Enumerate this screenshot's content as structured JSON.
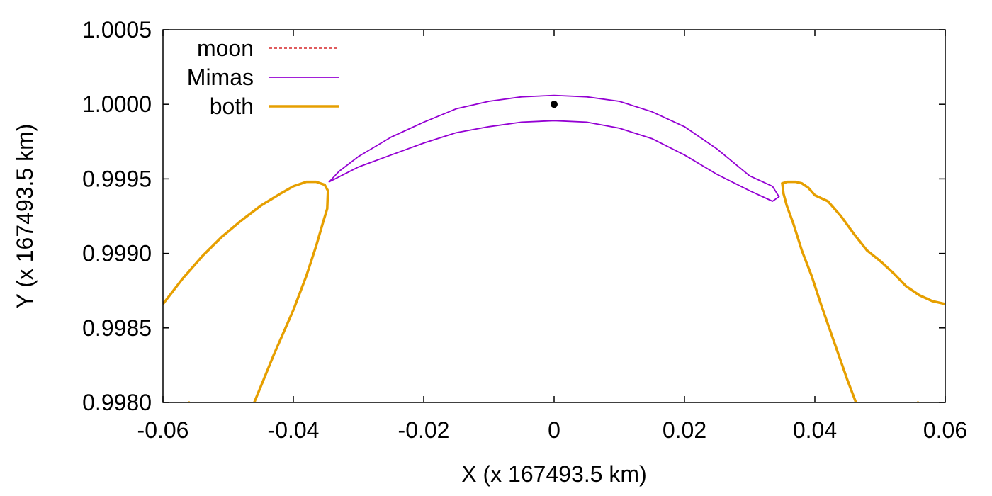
{
  "chart_data": {
    "type": "line",
    "title": "",
    "xlabel": "X (x 167493.5 km)",
    "ylabel": "Y (x 167493.5 km)",
    "xlim": [
      -0.06,
      0.06
    ],
    "ylim": [
      0.998,
      1.0005
    ],
    "x_ticks": [
      -0.06,
      -0.04,
      -0.02,
      0,
      0.02,
      0.04,
      0.06
    ],
    "x_tick_labels": [
      "-0.06",
      "-0.04",
      "-0.02",
      "0",
      "0.02",
      "0.04",
      "0.06"
    ],
    "y_ticks": [
      0.998,
      0.9985,
      0.999,
      0.9995,
      1.0,
      1.0005
    ],
    "y_tick_labels": [
      "0.9980",
      "0.9985",
      "0.9990",
      "0.9995",
      "1.0000",
      "1.0005"
    ],
    "grid": false,
    "legend_position": "top-left",
    "series": [
      {
        "name": "moon",
        "color": "#d62728",
        "style": "dashed",
        "segments": [
          [
            [
              -0.06,
              0.99866
            ],
            [
              -0.057,
              0.99883
            ],
            [
              -0.054,
              0.99898
            ],
            [
              -0.051,
              0.99911
            ],
            [
              -0.048,
              0.99922
            ],
            [
              -0.045,
              0.99932
            ],
            [
              -0.042,
              0.9994
            ],
            [
              -0.04,
              0.99945
            ],
            [
              -0.038,
              0.99948
            ],
            [
              -0.0365,
              0.99948
            ],
            [
              -0.0352,
              0.99946
            ],
            [
              -0.0347,
              0.99942
            ],
            [
              -0.0348,
              0.9993
            ],
            [
              -0.0355,
              0.9992
            ],
            [
              -0.0365,
              0.99905
            ],
            [
              -0.038,
              0.99885
            ],
            [
              -0.04,
              0.99862
            ],
            [
              -0.043,
              0.99832
            ],
            [
              -0.046,
              0.998
            ],
            [
              -0.049,
              0.99768
            ],
            [
              -0.052,
              0.99738
            ],
            [
              -0.056,
              0.998
            ]
          ],
          [
            [
              0.035,
              0.99947
            ],
            [
              0.0352,
              0.9994
            ],
            [
              0.0357,
              0.99932
            ],
            [
              0.0367,
              0.9992
            ],
            [
              0.038,
              0.99902
            ],
            [
              0.0395,
              0.99885
            ],
            [
              0.041,
              0.99865
            ],
            [
              0.043,
              0.9984
            ],
            [
              0.045,
              0.99815
            ],
            [
              0.047,
              0.99792
            ],
            [
              0.0495,
              0.99765
            ],
            [
              0.052,
              0.99737
            ],
            [
              0.0558,
              0.998
            ]
          ],
          [
            [
              0.035,
              0.99947
            ],
            [
              0.0358,
              0.99948
            ],
            [
              0.037,
              0.99948
            ],
            [
              0.038,
              0.99947
            ],
            [
              0.039,
              0.99944
            ],
            [
              0.04,
              0.99939
            ],
            [
              0.041,
              0.99937
            ],
            [
              0.042,
              0.99935
            ],
            [
              0.044,
              0.99925
            ],
            [
              0.046,
              0.99913
            ],
            [
              0.048,
              0.99902
            ],
            [
              0.05,
              0.99895
            ],
            [
              0.052,
              0.99887
            ],
            [
              0.054,
              0.99878
            ],
            [
              0.056,
              0.99872
            ],
            [
              0.058,
              0.99868
            ],
            [
              0.06,
              0.99866
            ]
          ]
        ]
      },
      {
        "name": "Mimas",
        "color": "#9400d3",
        "style": "solid",
        "segments": [
          [
            [
              -0.0345,
              0.99948
            ],
            [
              -0.033,
              0.99955
            ],
            [
              -0.03,
              0.99965
            ],
            [
              -0.025,
              0.99978
            ],
            [
              -0.02,
              0.99988
            ],
            [
              -0.015,
              0.99997
            ],
            [
              -0.01,
              1.00002
            ],
            [
              -0.005,
              1.00005
            ],
            [
              0.0,
              1.00006
            ],
            [
              0.005,
              1.00005
            ],
            [
              0.01,
              1.00002
            ],
            [
              0.015,
              0.99995
            ],
            [
              0.02,
              0.99985
            ],
            [
              0.025,
              0.9997
            ],
            [
              0.03,
              0.99952
            ],
            [
              0.0335,
              0.99945
            ],
            [
              0.0345,
              0.99938
            ]
          ],
          [
            [
              -0.0345,
              0.99948
            ],
            [
              -0.03,
              0.99958
            ],
            [
              -0.025,
              0.99966
            ],
            [
              -0.02,
              0.99974
            ],
            [
              -0.015,
              0.99981
            ],
            [
              -0.01,
              0.99985
            ],
            [
              -0.005,
              0.99988
            ],
            [
              0.0,
              0.99989
            ],
            [
              0.005,
              0.99988
            ],
            [
              0.01,
              0.99984
            ],
            [
              0.015,
              0.99977
            ],
            [
              0.02,
              0.99966
            ],
            [
              0.025,
              0.99953
            ],
            [
              0.03,
              0.99942
            ],
            [
              0.0335,
              0.99935
            ],
            [
              0.0345,
              0.99938
            ]
          ]
        ]
      },
      {
        "name": "both",
        "color": "#e69f00",
        "style": "solid",
        "segments": [
          [
            [
              -0.06,
              0.99866
            ],
            [
              -0.057,
              0.99883
            ],
            [
              -0.054,
              0.99898
            ],
            [
              -0.051,
              0.99911
            ],
            [
              -0.048,
              0.99922
            ],
            [
              -0.045,
              0.99932
            ],
            [
              -0.042,
              0.9994
            ],
            [
              -0.04,
              0.99945
            ],
            [
              -0.038,
              0.99948
            ],
            [
              -0.0365,
              0.99948
            ],
            [
              -0.0352,
              0.99946
            ],
            [
              -0.0347,
              0.99942
            ],
            [
              -0.0348,
              0.9993
            ],
            [
              -0.0355,
              0.9992
            ],
            [
              -0.0365,
              0.99905
            ],
            [
              -0.038,
              0.99885
            ],
            [
              -0.04,
              0.99862
            ],
            [
              -0.043,
              0.99832
            ],
            [
              -0.046,
              0.998
            ],
            [
              -0.049,
              0.99768
            ],
            [
              -0.052,
              0.99738
            ],
            [
              -0.056,
              0.998
            ]
          ],
          [
            [
              0.035,
              0.99947
            ],
            [
              0.0352,
              0.9994
            ],
            [
              0.0357,
              0.99932
            ],
            [
              0.0367,
              0.9992
            ],
            [
              0.038,
              0.99902
            ],
            [
              0.0395,
              0.99885
            ],
            [
              0.041,
              0.99865
            ],
            [
              0.043,
              0.9984
            ],
            [
              0.045,
              0.99815
            ],
            [
              0.047,
              0.99792
            ],
            [
              0.0495,
              0.99765
            ],
            [
              0.052,
              0.99737
            ],
            [
              0.0558,
              0.998
            ]
          ],
          [
            [
              0.035,
              0.99947
            ],
            [
              0.0358,
              0.99948
            ],
            [
              0.037,
              0.99948
            ],
            [
              0.038,
              0.99947
            ],
            [
              0.039,
              0.99944
            ],
            [
              0.04,
              0.99939
            ],
            [
              0.041,
              0.99937
            ],
            [
              0.042,
              0.99935
            ],
            [
              0.044,
              0.99925
            ],
            [
              0.046,
              0.99913
            ],
            [
              0.048,
              0.99902
            ],
            [
              0.05,
              0.99895
            ],
            [
              0.052,
              0.99887
            ],
            [
              0.054,
              0.99878
            ],
            [
              0.056,
              0.99872
            ],
            [
              0.058,
              0.99868
            ],
            [
              0.06,
              0.99866
            ]
          ]
        ]
      }
    ],
    "points": [
      {
        "x": 0.0,
        "y": 1.0,
        "color": "#000000"
      }
    ]
  }
}
